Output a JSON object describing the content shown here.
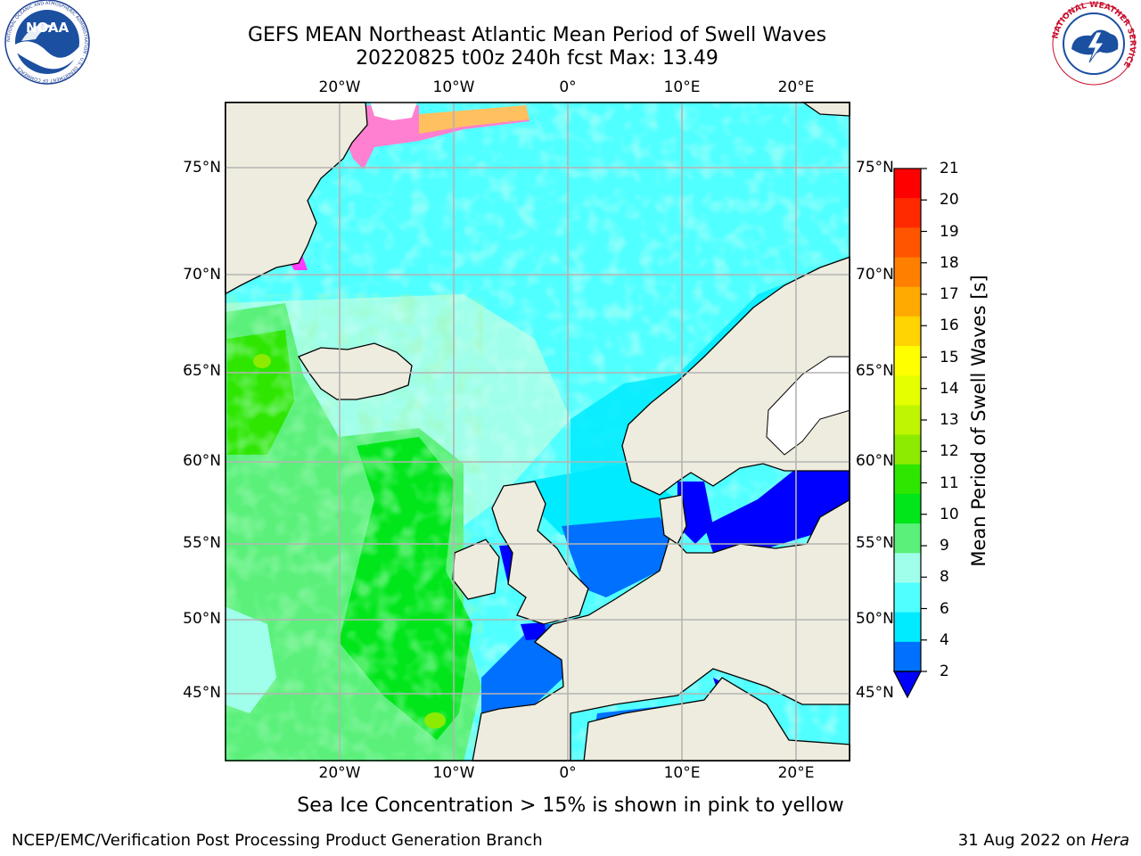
{
  "title": {
    "line1": "GEFS MEAN Northeast Atlantic Mean Period of Swell Waves",
    "line2": "20220825 t00z 240h fcst   Max: 13.49"
  },
  "logos": {
    "noaa_text": "NOAA",
    "noaa_ring": "NATIONAL OCEANIC AND ATMOSPHERIC ADMINISTRATION · U.S. DEPARTMENT OF COMMERCE",
    "nws_ring": "NATIONAL WEATHER SERVICE"
  },
  "map": {
    "lon_labels": [
      "20°W",
      "10°W",
      "0°",
      "10°E",
      "20°E"
    ],
    "lat_labels": [
      "75°N",
      "70°N",
      "65°N",
      "60°N",
      "55°N",
      "50°N",
      "45°N"
    ],
    "colors": {
      "land": "#EEECDE",
      "grid": "#B4B4B4",
      "coast": "#000000"
    }
  },
  "colorbar": {
    "label": "Mean Period of Swell Waves [s]",
    "ticks": [
      "21",
      "20",
      "19",
      "18",
      "17",
      "16",
      "15",
      "14",
      "13",
      "12",
      "11",
      "10",
      "9",
      "8",
      "6",
      "4",
      "2"
    ],
    "colors": [
      "#FF0000",
      "#FF2A00",
      "#FF5500",
      "#FF7F00",
      "#FFAA00",
      "#FFD400",
      "#FFFF00",
      "#E6FF00",
      "#BFF500",
      "#8CEB00",
      "#2EE600",
      "#00E61A",
      "#5AF07A",
      "#A0FFEA",
      "#50FFFF",
      "#00EBFF",
      "#0070FF"
    ],
    "extend_color": "#0000FF"
  },
  "caption": "Sea Ice Concentration > 15% is shown in pink to yellow",
  "footer": {
    "left": "NCEP/EMC/Verification Post Processing Product Generation Branch",
    "date": "31 Aug 2022 on ",
    "machine": "Hera"
  }
}
